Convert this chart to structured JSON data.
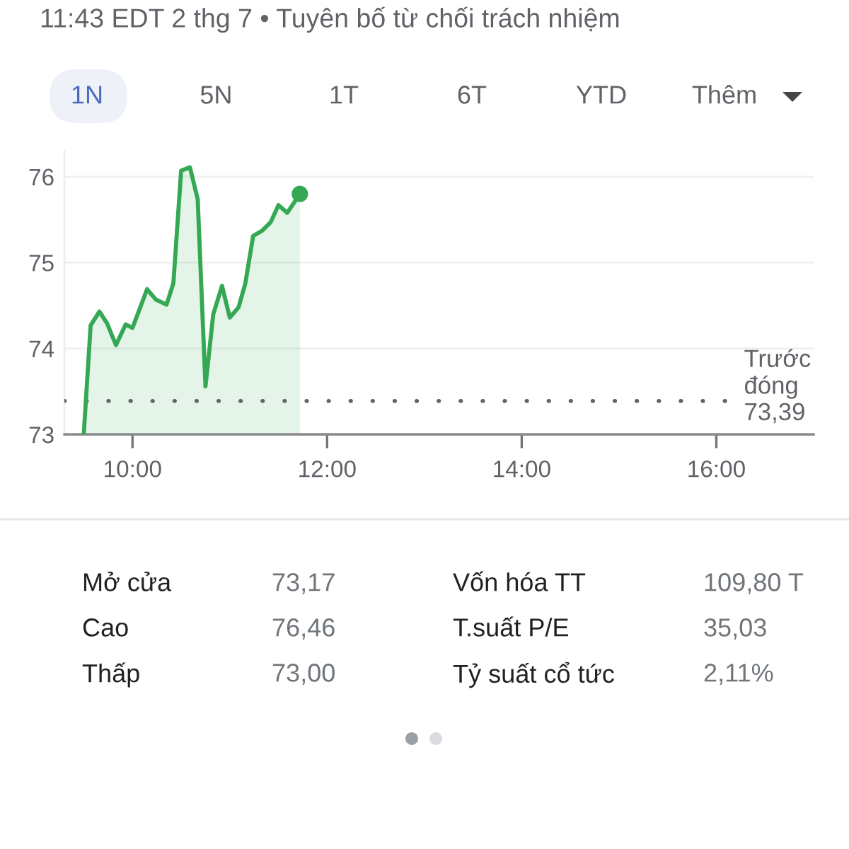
{
  "chart_data": {
    "type": "area",
    "title": "11:43 EDT 2 thg 7 • Tuyên bố từ chối trách nhiệm",
    "annotations": [
      "1N",
      "5N",
      "1T",
      "6T",
      "YTD",
      "Thêm",
      "Mở cửa",
      "73,17",
      "Vốn hóa TT",
      "109,80 T",
      "Cao",
      "76,46",
      "T.suất P/E",
      "35,03",
      "Thấp",
      "73,00",
      "Tỷ suất cổ tức",
      "2,11%"
    ],
    "series": [
      {
        "color": "#34a853",
        "x": [
          9.5,
          9.57,
          9.66,
          9.74,
          9.83,
          9.93,
          10.0,
          10.15,
          10.24,
          10.35,
          10.42,
          10.5,
          10.59,
          10.67,
          10.75,
          10.83,
          10.92,
          11.0,
          11.09,
          11.16,
          11.24,
          11.33,
          11.42,
          11.5,
          11.59,
          11.72
        ],
        "values": [
          73.02,
          74.27,
          74.43,
          74.29,
          74.04,
          74.28,
          74.24,
          74.69,
          74.57,
          74.51,
          74.76,
          76.07,
          76.11,
          75.74,
          73.56,
          74.4,
          74.73,
          74.36,
          74.48,
          74.76,
          75.31,
          75.37,
          75.47,
          75.67,
          75.58,
          75.8
        ]
      },
      {
        "type": "scatter",
        "color": "#34a853",
        "marker": "circle",
        "x": [
          11.72
        ],
        "values": [
          75.8
        ]
      }
    ],
    "xlim": [
      9.3,
      17.0
    ],
    "xticks": [
      {
        "value": 10,
        "label": "10:00"
      },
      {
        "value": 12,
        "label": "12:00"
      },
      {
        "value": 14,
        "label": "14:00"
      },
      {
        "value": 16,
        "label": "16:00"
      }
    ],
    "ylim": [
      73,
      76.3
    ],
    "yticks": [
      73,
      74,
      75,
      76
    ],
    "grid": "y",
    "marker": "none",
    "line_style": "solid",
    "ref_lines": [
      {
        "axis": "y",
        "value": 73.39,
        "label": "Trước\nđóng\n73,39",
        "color": "#5f6368",
        "line_style": "dotted"
      }
    ]
  }
}
